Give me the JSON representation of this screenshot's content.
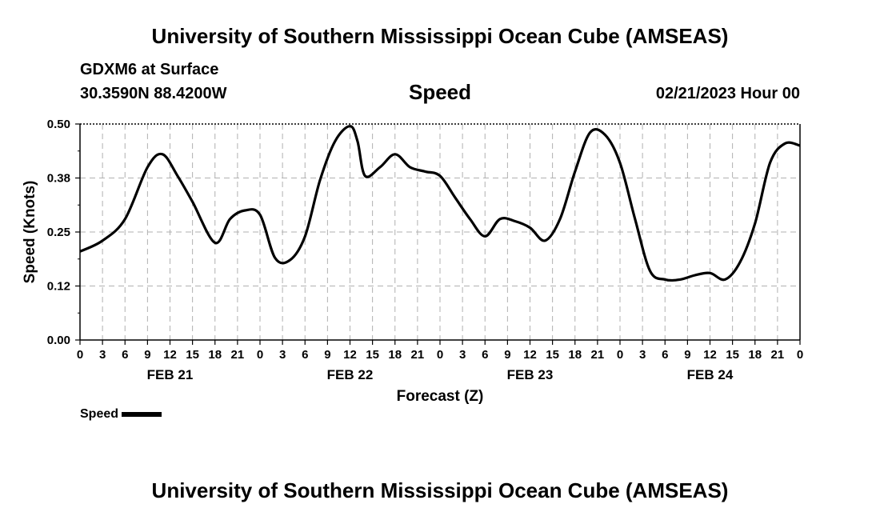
{
  "page_title": "University of Southern Mississippi Ocean Cube (AMSEAS)",
  "footer_title": "University of Southern Mississippi Ocean Cube (AMSEAS)",
  "station": "GDXM6 at Surface",
  "coords": "30.3590N  88.4200W",
  "issued": "02/21/2023 Hour 00",
  "legend_label": "Speed",
  "line_color": "#000000",
  "chart_data": {
    "type": "line",
    "title": "Speed",
    "xlabel": "Forecast (Z)",
    "ylabel": "Speed (Knots)",
    "ylim": [
      0,
      0.5
    ],
    "xlim": [
      0,
      96
    ],
    "yticks": [
      "0.00",
      "0.12",
      "0.25",
      "0.38",
      "0.50"
    ],
    "ytick_values": [
      0,
      0.125,
      0.25,
      0.375,
      0.5
    ],
    "xtick_labels": [
      "0",
      "3",
      "6",
      "9",
      "12",
      "15",
      "18",
      "21",
      "0",
      "3",
      "6",
      "9",
      "12",
      "15",
      "18",
      "21",
      "0",
      "3",
      "6",
      "9",
      "12",
      "15",
      "18",
      "21",
      "0",
      "3",
      "6",
      "9",
      "12",
      "15",
      "18",
      "21",
      "0"
    ],
    "day_labels": [
      {
        "label": "FEB 21",
        "hour": 12
      },
      {
        "label": "FEB 22",
        "hour": 36
      },
      {
        "label": "FEB 23",
        "hour": 60
      },
      {
        "label": "FEB 24",
        "hour": 84
      }
    ],
    "grid": true,
    "series": [
      {
        "name": "Speed",
        "x": [
          0,
          3,
          6,
          9,
          11,
          13,
          15,
          18,
          20,
          22,
          24,
          26,
          28,
          30,
          32,
          34,
          36,
          37,
          38,
          40,
          42,
          44,
          46,
          48,
          50,
          52,
          54,
          56,
          58,
          60,
          62,
          64,
          66,
          68,
          70,
          72,
          74,
          76,
          78,
          80,
          82,
          84,
          86,
          88,
          90,
          92,
          94,
          96
        ],
        "y": [
          0.205,
          0.23,
          0.28,
          0.4,
          0.43,
          0.38,
          0.32,
          0.225,
          0.28,
          0.3,
          0.29,
          0.19,
          0.185,
          0.24,
          0.37,
          0.46,
          0.495,
          0.46,
          0.38,
          0.4,
          0.43,
          0.4,
          0.39,
          0.38,
          0.33,
          0.28,
          0.24,
          0.28,
          0.275,
          0.26,
          0.23,
          0.28,
          0.39,
          0.48,
          0.475,
          0.41,
          0.28,
          0.16,
          0.14,
          0.14,
          0.15,
          0.155,
          0.14,
          0.18,
          0.27,
          0.41,
          0.455,
          0.45
        ]
      }
    ]
  }
}
